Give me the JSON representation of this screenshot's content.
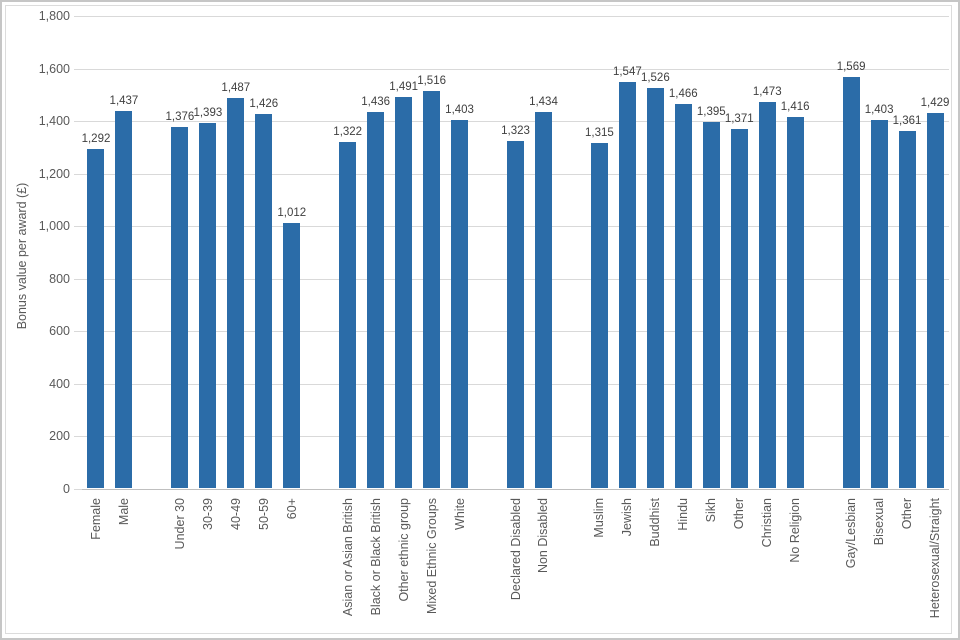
{
  "chart_data": {
    "type": "bar",
    "title": "",
    "xlabel": "",
    "ylabel": "Bonus value per award (£)",
    "ylim": [
      0,
      1800
    ],
    "ytick_interval": 200,
    "ytick_labels": [
      "0",
      "200",
      "400",
      "600",
      "800",
      "1,000",
      "1,200",
      "1,400",
      "1,600",
      "1,800"
    ],
    "grid": true,
    "legend": "none",
    "bar_color": "#2b6ca8",
    "groups": [
      {
        "bars": [
          {
            "label": "Female",
            "value": 1292,
            "display": "1,292"
          },
          {
            "label": "Male",
            "value": 1437,
            "display": "1,437"
          }
        ]
      },
      {
        "bars": [
          {
            "label": "Under 30",
            "value": 1376,
            "display": "1,376"
          },
          {
            "label": "30-39",
            "value": 1393,
            "display": "1,393"
          },
          {
            "label": "40-49",
            "value": 1487,
            "display": "1,487"
          },
          {
            "label": "50-59",
            "value": 1426,
            "display": "1,426"
          },
          {
            "label": "60+",
            "value": 1012,
            "display": "1,012"
          }
        ]
      },
      {
        "bars": [
          {
            "label": "Asian or Asian British",
            "value": 1322,
            "display": "1,322"
          },
          {
            "label": "Black or Black British",
            "value": 1436,
            "display": "1,436"
          },
          {
            "label": "Other ethnic group",
            "value": 1491,
            "display": "1,491"
          },
          {
            "label": "Mixed Ethnic Groups",
            "value": 1516,
            "display": "1,516"
          },
          {
            "label": "White",
            "value": 1403,
            "display": "1,403"
          }
        ]
      },
      {
        "bars": [
          {
            "label": "Declared Disabled",
            "value": 1323,
            "display": "1,323"
          },
          {
            "label": "Non Disabled",
            "value": 1434,
            "display": "1,434"
          }
        ]
      },
      {
        "bars": [
          {
            "label": "Muslim",
            "value": 1315,
            "display": "1,315"
          },
          {
            "label": "Jewish",
            "value": 1547,
            "display": "1,547"
          },
          {
            "label": "Buddhist",
            "value": 1526,
            "display": "1,526"
          },
          {
            "label": "Hindu",
            "value": 1466,
            "display": "1,466"
          },
          {
            "label": "Sikh",
            "value": 1395,
            "display": "1,395"
          },
          {
            "label": "Other",
            "value": 1371,
            "display": "1,371"
          },
          {
            "label": "Christian",
            "value": 1473,
            "display": "1,473"
          },
          {
            "label": "No Religion",
            "value": 1416,
            "display": "1,416"
          }
        ]
      },
      {
        "bars": [
          {
            "label": "Gay/Lesbian",
            "value": 1569,
            "display": "1,569"
          },
          {
            "label": "Bisexual",
            "value": 1403,
            "display": "1,403"
          },
          {
            "label": "Other",
            "value": 1361,
            "display": "1,361"
          },
          {
            "label": "Heterosexual/Straight",
            "value": 1429,
            "display": "1,429"
          }
        ]
      }
    ],
    "colors": {
      "gridline": "#d9d9d9",
      "axis_line": "#bfbfbf",
      "tick_text": "#595959",
      "value_text": "#404040"
    }
  }
}
